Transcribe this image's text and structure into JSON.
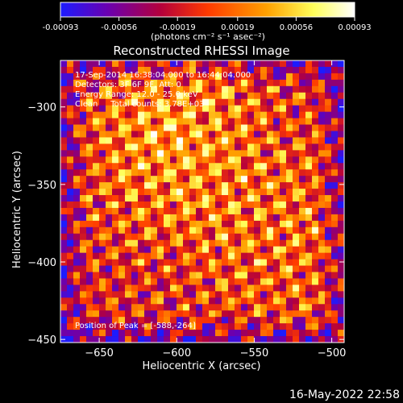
{
  "chart_data": {
    "type": "heatmap",
    "title": "Reconstructed RHESSI Image",
    "xlabel": "Heliocentric X (arcsec)",
    "ylabel": "Heliocentric Y (arcsec)",
    "xlim": [
      -675,
      -492
    ],
    "ylim": [
      -452,
      -270
    ],
    "x_ticks": [
      -650,
      -600,
      -550,
      -500
    ],
    "x_tick_labels": [
      "−650",
      "−600",
      "−550",
      "−500"
    ],
    "y_ticks": [
      -300,
      -350,
      -400,
      -450
    ],
    "y_tick_labels": [
      "−300",
      "−350",
      "−400",
      "−450"
    ],
    "colorbar": {
      "ticks": [
        -0.00093,
        -0.00056,
        -0.00019,
        0.00019,
        0.00056,
        0.00093
      ],
      "tick_labels": [
        "-0.00093",
        "-0.00056",
        "-0.00019",
        "0.00019",
        "0.00056",
        "0.00093"
      ],
      "units_label": "(photons cm⁻² s⁻¹ asec⁻²)",
      "colors": [
        "#1c1cff",
        "#6a00b0",
        "#b4003c",
        "#ff3a00",
        "#ffa000",
        "#ffff5a",
        "#ffffff"
      ]
    },
    "annotations": [
      "17-Sep-2014 16:38:04.000 to 16:44:04.000",
      "Detectors: 3F 6F 9F, Att: 0",
      "Energy Range: 12.0 - 25.0 keV",
      "Clean     Total counts: 3.78E+03"
    ],
    "peak_label": "Position of Peak = [-588,-264]",
    "peak_position": [
      -588,
      -264
    ],
    "grid": false
  },
  "footer": {
    "timestamp": "16-May-2022 22:58"
  }
}
